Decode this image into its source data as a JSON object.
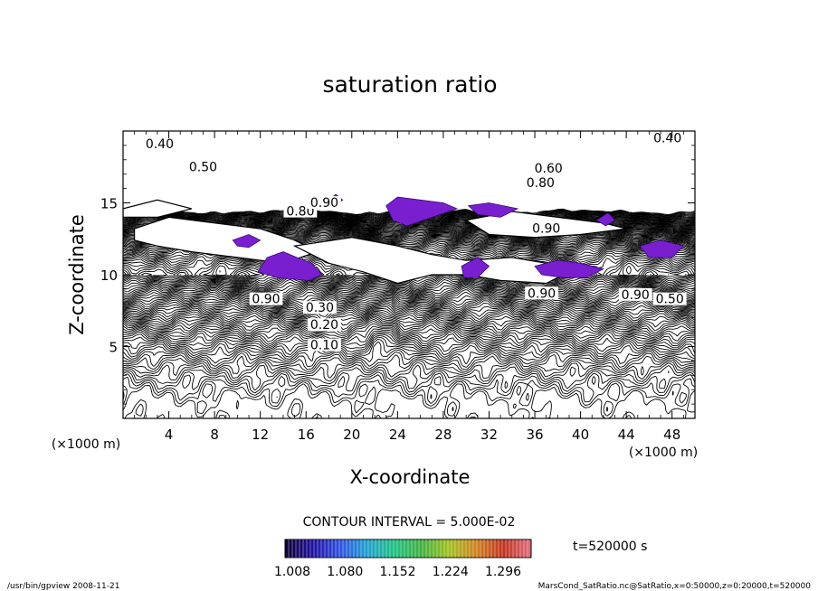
{
  "chart_data": {
    "type": "contour",
    "title": "saturation ratio",
    "xlabel": "X-coordinate",
    "ylabel": "Z-coordinate",
    "x_unit_label": "(×1000 m)",
    "y_unit_label": "(×1000 m)",
    "xlim": [
      0,
      50
    ],
    "ylim": [
      0,
      20
    ],
    "x_ticks": [
      4,
      8,
      12,
      16,
      20,
      24,
      28,
      32,
      36,
      40,
      44,
      48
    ],
    "y_ticks": [
      5,
      10,
      15
    ],
    "contour_interval_text": "CONTOUR INTERVAL = 5.000E-02",
    "contour_level_labels": [
      {
        "text": "0.10",
        "x": 17.6,
        "z": 5.0
      },
      {
        "text": "0.20",
        "x": 17.6,
        "z": 6.4
      },
      {
        "text": "0.30",
        "x": 17.2,
        "z": 7.6
      },
      {
        "text": "0.40",
        "x": 3.2,
        "z": 19.0
      },
      {
        "text": "0.40",
        "x": 47.6,
        "z": 19.4
      },
      {
        "text": "0.50",
        "x": 7.0,
        "z": 17.4
      },
      {
        "text": "0.50",
        "x": 47.8,
        "z": 8.2
      },
      {
        "text": "0.60",
        "x": 37.2,
        "z": 17.3
      },
      {
        "text": "0.80",
        "x": 36.5,
        "z": 16.3
      },
      {
        "text": "0.80",
        "x": 15.5,
        "z": 14.3
      },
      {
        "text": "0.90",
        "x": 17.6,
        "z": 14.9
      },
      {
        "text": "0.90",
        "x": 37.0,
        "z": 13.1
      },
      {
        "text": "0.90",
        "x": 36.6,
        "z": 8.6
      },
      {
        "text": "0.90",
        "x": 44.8,
        "z": 8.5
      },
      {
        "text": "0.90",
        "x": 12.5,
        "z": 8.2
      }
    ],
    "shaded_regions_min": 1.0,
    "colorbar": {
      "ticks": [
        "1.008",
        "1.080",
        "1.152",
        "1.224",
        "1.296"
      ],
      "colors": [
        "#100030",
        "#2010a0",
        "#3050e0",
        "#20a0d0",
        "#20c080",
        "#40b040",
        "#a0c020",
        "#d08020",
        "#c03020",
        "#e07080"
      ]
    },
    "time_label": "t=520000 s"
  },
  "footer": {
    "left": "/usr/bin/gpview   2008-11-21",
    "right": "MarsCond_SatRatio.nc@SatRatio,x=0:50000,z=0:20000,t=520000"
  }
}
